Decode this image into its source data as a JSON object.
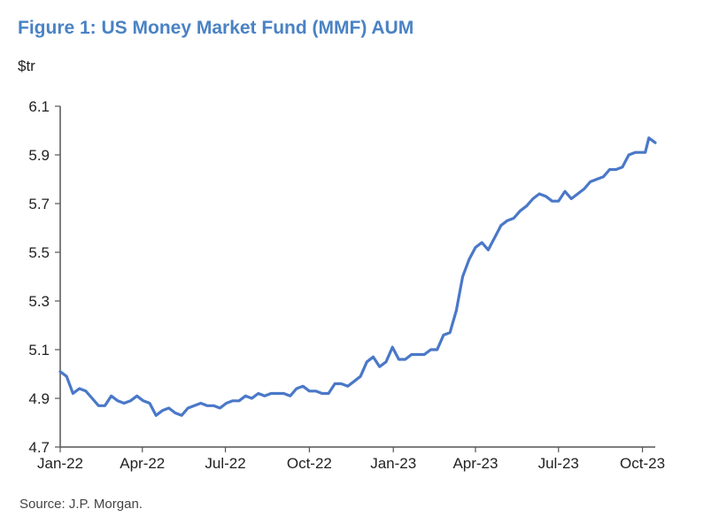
{
  "header": {
    "title": "Figure 1: US Money Market Fund (MMF) AUM",
    "unit": "$tr"
  },
  "footer": {
    "source": "Source: J.P. Morgan."
  },
  "colors": {
    "title": "#4a82c4",
    "line": "#4a78c8",
    "axis": "#555555",
    "text": "#222222"
  },
  "chart_data": {
    "type": "line",
    "title": "Figure 1: US Money Market Fund (MMF) AUM",
    "ylabel": "$tr",
    "xlabel": "",
    "ylim": [
      4.7,
      6.1
    ],
    "xlim": [
      "2022-01-01",
      "2023-10-15"
    ],
    "grid": false,
    "legend": "none",
    "y_ticks": [
      "4.7",
      "4.9",
      "5.1",
      "5.3",
      "5.5",
      "5.7",
      "5.9",
      "6.1"
    ],
    "x_ticks": [
      {
        "date": "2022-01-01",
        "label": "Jan-22"
      },
      {
        "date": "2022-04-01",
        "label": "Apr-22"
      },
      {
        "date": "2022-07-01",
        "label": "Jul-22"
      },
      {
        "date": "2022-10-01",
        "label": "Oct-22"
      },
      {
        "date": "2023-01-01",
        "label": "Jan-23"
      },
      {
        "date": "2023-04-01",
        "label": "Apr-23"
      },
      {
        "date": "2023-07-01",
        "label": "Jul-23"
      },
      {
        "date": "2023-10-01",
        "label": "Oct-23"
      }
    ],
    "series": [
      {
        "points": [
          [
            "2022-01-01",
            5.01
          ],
          [
            "2022-01-08",
            4.99
          ],
          [
            "2022-01-15",
            4.92
          ],
          [
            "2022-01-22",
            4.94
          ],
          [
            "2022-01-29",
            4.93
          ],
          [
            "2022-02-05",
            4.9
          ],
          [
            "2022-02-12",
            4.87
          ],
          [
            "2022-02-19",
            4.87
          ],
          [
            "2022-02-26",
            4.91
          ],
          [
            "2022-03-05",
            4.89
          ],
          [
            "2022-03-12",
            4.88
          ],
          [
            "2022-03-19",
            4.89
          ],
          [
            "2022-03-26",
            4.91
          ],
          [
            "2022-04-02",
            4.89
          ],
          [
            "2022-04-09",
            4.88
          ],
          [
            "2022-04-16",
            4.83
          ],
          [
            "2022-04-23",
            4.85
          ],
          [
            "2022-04-30",
            4.86
          ],
          [
            "2022-05-07",
            4.84
          ],
          [
            "2022-05-14",
            4.83
          ],
          [
            "2022-05-21",
            4.86
          ],
          [
            "2022-05-28",
            4.87
          ],
          [
            "2022-06-04",
            4.88
          ],
          [
            "2022-06-11",
            4.87
          ],
          [
            "2022-06-18",
            4.87
          ],
          [
            "2022-06-25",
            4.86
          ],
          [
            "2022-07-02",
            4.88
          ],
          [
            "2022-07-09",
            4.89
          ],
          [
            "2022-07-16",
            4.89
          ],
          [
            "2022-07-23",
            4.91
          ],
          [
            "2022-07-30",
            4.9
          ],
          [
            "2022-08-06",
            4.92
          ],
          [
            "2022-08-13",
            4.91
          ],
          [
            "2022-08-20",
            4.92
          ],
          [
            "2022-08-27",
            4.92
          ],
          [
            "2022-09-03",
            4.92
          ],
          [
            "2022-09-10",
            4.91
          ],
          [
            "2022-09-17",
            4.94
          ],
          [
            "2022-09-24",
            4.95
          ],
          [
            "2022-10-01",
            4.93
          ],
          [
            "2022-10-08",
            4.93
          ],
          [
            "2022-10-15",
            4.92
          ],
          [
            "2022-10-22",
            4.92
          ],
          [
            "2022-10-29",
            4.96
          ],
          [
            "2022-11-05",
            4.96
          ],
          [
            "2022-11-12",
            4.95
          ],
          [
            "2022-11-19",
            4.97
          ],
          [
            "2022-11-26",
            4.99
          ],
          [
            "2022-12-03",
            5.05
          ],
          [
            "2022-12-10",
            5.07
          ],
          [
            "2022-12-17",
            5.03
          ],
          [
            "2022-12-24",
            5.05
          ],
          [
            "2022-12-31",
            5.11
          ],
          [
            "2023-01-07",
            5.06
          ],
          [
            "2023-01-14",
            5.06
          ],
          [
            "2023-01-21",
            5.08
          ],
          [
            "2023-01-28",
            5.08
          ],
          [
            "2023-02-04",
            5.08
          ],
          [
            "2023-02-11",
            5.1
          ],
          [
            "2023-02-18",
            5.1
          ],
          [
            "2023-02-25",
            5.16
          ],
          [
            "2023-03-04",
            5.17
          ],
          [
            "2023-03-11",
            5.26
          ],
          [
            "2023-03-18",
            5.4
          ],
          [
            "2023-03-25",
            5.47
          ],
          [
            "2023-04-01",
            5.52
          ],
          [
            "2023-04-08",
            5.54
          ],
          [
            "2023-04-15",
            5.51
          ],
          [
            "2023-04-22",
            5.56
          ],
          [
            "2023-04-29",
            5.61
          ],
          [
            "2023-05-06",
            5.63
          ],
          [
            "2023-05-13",
            5.64
          ],
          [
            "2023-05-20",
            5.67
          ],
          [
            "2023-05-27",
            5.69
          ],
          [
            "2023-06-03",
            5.72
          ],
          [
            "2023-06-10",
            5.74
          ],
          [
            "2023-06-17",
            5.73
          ],
          [
            "2023-06-24",
            5.71
          ],
          [
            "2023-07-01",
            5.71
          ],
          [
            "2023-07-08",
            5.75
          ],
          [
            "2023-07-15",
            5.72
          ],
          [
            "2023-07-22",
            5.74
          ],
          [
            "2023-07-29",
            5.76
          ],
          [
            "2023-08-05",
            5.79
          ],
          [
            "2023-08-12",
            5.8
          ],
          [
            "2023-08-19",
            5.81
          ],
          [
            "2023-08-26",
            5.84
          ],
          [
            "2023-09-02",
            5.84
          ],
          [
            "2023-09-09",
            5.85
          ],
          [
            "2023-09-16",
            5.9
          ],
          [
            "2023-09-23",
            5.91
          ],
          [
            "2023-09-30",
            5.91
          ],
          [
            "2023-10-04",
            5.91
          ],
          [
            "2023-10-08",
            5.97
          ],
          [
            "2023-10-15",
            5.95
          ]
        ]
      }
    ]
  }
}
